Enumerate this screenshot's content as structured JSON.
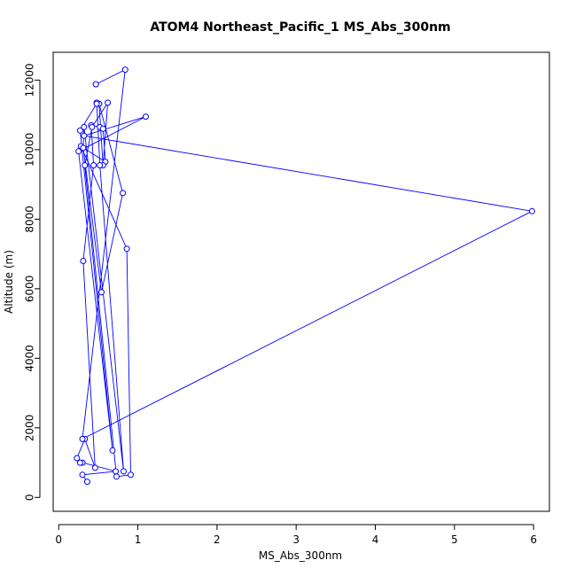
{
  "chart_data": {
    "type": "line",
    "title": "ATOM4 Northeast_Pacific_1 MS_Abs_300nm",
    "xlabel": "MS_Abs_300nm",
    "ylabel": "Altitude (m)",
    "xlim": [
      -0.07,
      6.2
    ],
    "ylim": [
      -400,
      12800
    ],
    "xticks": [
      0,
      1,
      2,
      3,
      4,
      5,
      6
    ],
    "yticks": [
      0,
      2000,
      4000,
      6000,
      8000,
      10000,
      12000
    ],
    "grid": false,
    "legend": "none",
    "colors": {
      "series": "#0000ff",
      "axis": "#000000",
      "background": "#ffffff"
    },
    "series": [
      {
        "x": [
          0.36,
          0.3,
          0.72,
          0.3,
          0.27,
          0.23,
          0.33,
          0.46,
          0.31,
          0.44,
          0.41,
          0.52,
          0.56,
          0.59,
          0.28,
          0.86,
          0.91,
          0.73,
          0.33,
          0.42,
          0.62,
          0.56,
          0.51,
          0.81,
          0.54,
          0.31,
          0.32,
          0.82,
          0.52,
          0.48,
          0.48,
          0.27,
          0.68,
          0.25,
          1.1,
          0.32,
          5.98,
          0.3,
          0.84,
          0.47
        ],
        "y": [
          450,
          650,
          750,
          1000,
          1000,
          1130,
          1680,
          850,
          6800,
          9550,
          10700,
          10650,
          10600,
          9650,
          10100,
          7150,
          650,
          600,
          9550,
          10650,
          11350,
          9550,
          11320,
          8750,
          5900,
          10050,
          10650,
          750,
          9550,
          11350,
          11320,
          10550,
          1350,
          9950,
          10950,
          10400,
          8230,
          1680,
          12300,
          11880
        ]
      }
    ]
  }
}
